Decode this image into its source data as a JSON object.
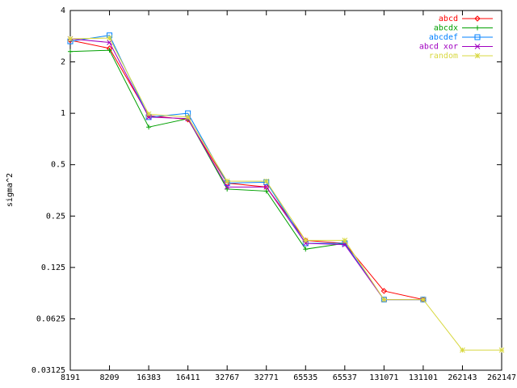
{
  "chart_data": {
    "type": "line",
    "ylabel": "sigma^2",
    "ylog": true,
    "legend": "top-right",
    "categories": [
      "8191",
      "8209",
      "16383",
      "16411",
      "32767",
      "32771",
      "65535",
      "65537",
      "131071",
      "131101",
      "262143",
      "262147"
    ],
    "ylim": [
      0.03125,
      4
    ],
    "yticks": [
      0.03125,
      0.0625,
      0.125,
      0.25,
      0.5,
      1,
      2,
      4
    ],
    "series": [
      {
        "name": "abcd",
        "color": "#ff0000",
        "marker": "diamond",
        "values": [
          2.68,
          2.4,
          0.97,
          0.92,
          0.39,
          0.37,
          0.18,
          0.173,
          0.091,
          0.081,
          null,
          null
        ]
      },
      {
        "name": "abcdx",
        "color": "#00a000",
        "marker": "plus",
        "values": [
          2.3,
          2.34,
          0.83,
          0.93,
          0.36,
          0.35,
          0.16,
          0.173,
          0.081,
          0.081,
          null,
          null
        ]
      },
      {
        "name": "abcdef",
        "color": "#0080ff",
        "marker": "square",
        "values": [
          2.64,
          2.86,
          0.95,
          1.0,
          0.39,
          0.395,
          0.173,
          0.173,
          0.081,
          0.081,
          null,
          null
        ]
      },
      {
        "name": "abcd xor",
        "color": "#a000c0",
        "marker": "cross",
        "values": [
          2.73,
          2.6,
          0.95,
          0.93,
          0.37,
          0.37,
          0.173,
          0.17,
          0.081,
          0.081,
          null,
          null
        ]
      },
      {
        "name": "random",
        "color": "#d8d840",
        "marker": "star",
        "values": [
          2.73,
          2.76,
          0.99,
          0.95,
          0.4,
          0.4,
          0.18,
          0.18,
          0.081,
          0.081,
          0.041,
          0.041
        ]
      }
    ]
  }
}
